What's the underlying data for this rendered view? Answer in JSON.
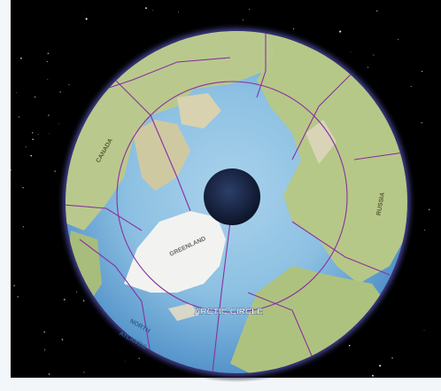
{
  "map": {
    "labels": [
      "CANADA",
      "GREENLAND",
      "RUSSIA",
      "ARCTIC CIRCLE",
      "NORTH",
      "ATLANTIC"
    ]
  }
}
